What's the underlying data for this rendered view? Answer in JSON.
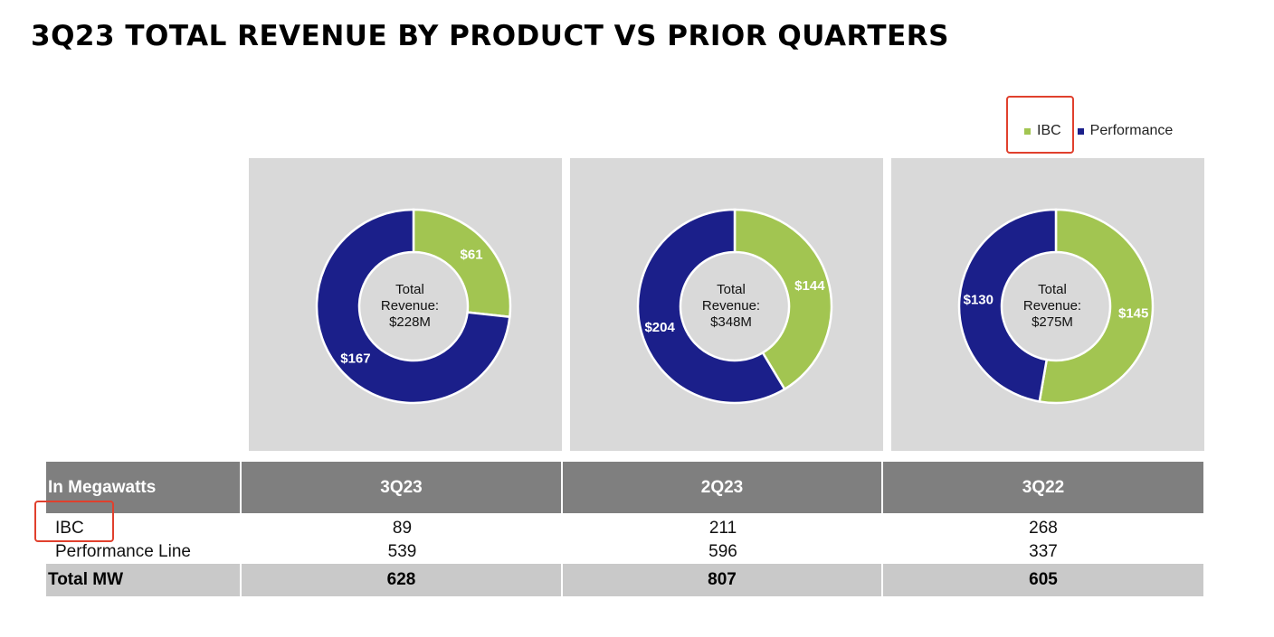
{
  "title": "3Q23 TOTAL REVENUE BY PRODUCT VS PRIOR QUARTERS",
  "colors": {
    "ibc": "#a2c551",
    "performance": "#1b1f8a",
    "panel": "#d9d9d9",
    "highlight": "#e0402d"
  },
  "legend": [
    {
      "label": "IBC",
      "color": "#a2c551"
    },
    {
      "label": "Performance",
      "color": "#1b1f8a"
    }
  ],
  "chart_data": [
    {
      "type": "pie",
      "name": "3Q23",
      "center_label": [
        "Total",
        "Revenue:",
        "$228M"
      ],
      "slices": [
        {
          "name": "IBC",
          "value": 61,
          "label": "$61"
        },
        {
          "name": "Performance",
          "value": 167,
          "label": "$167"
        }
      ]
    },
    {
      "type": "pie",
      "name": "2Q23",
      "center_label": [
        "Total",
        "Revenue:",
        "$348M"
      ],
      "slices": [
        {
          "name": "IBC",
          "value": 144,
          "label": "$144"
        },
        {
          "name": "Performance",
          "value": 204,
          "label": "$204"
        }
      ]
    },
    {
      "type": "pie",
      "name": "3Q22",
      "center_label": [
        "Total",
        "Revenue:",
        "$275M"
      ],
      "slices": [
        {
          "name": "IBC",
          "value": 145,
          "label": "$145"
        },
        {
          "name": "Performance",
          "value": 130,
          "label": "$130"
        }
      ]
    },
    {
      "type": "table",
      "headers": [
        "In Megawatts",
        "3Q23",
        "2Q23",
        "3Q22"
      ],
      "rows": [
        {
          "label": "IBC",
          "values": [
            "89",
            "211",
            "268"
          ]
        },
        {
          "label": "Performance Line",
          "values": [
            "539",
            "596",
            "337"
          ]
        }
      ],
      "total": {
        "label": "Total MW",
        "values": [
          "628",
          "807",
          "605"
        ]
      }
    }
  ]
}
